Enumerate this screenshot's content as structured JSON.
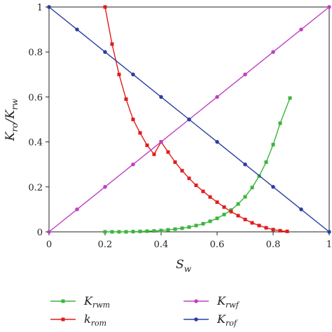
{
  "chart_data": {
    "type": "line",
    "xlabel": {
      "main": "S",
      "sub": "w"
    },
    "ylabel": {
      "main": "K",
      "sub1": "ro",
      "sep": "/K",
      "sub2": "rw"
    },
    "xlim": [
      0,
      1
    ],
    "ylim": [
      0,
      1
    ],
    "xticks": [
      "0",
      "0.2",
      "0.4",
      "0.6",
      "0.8",
      "1"
    ],
    "yticks": [
      "0",
      "0.2",
      "0.4",
      "0.6",
      "0.8",
      "1"
    ],
    "grid": false,
    "legend_position": "bottom",
    "series": [
      {
        "name": {
          "main": "K",
          "sub": "rwm"
        },
        "color": "#3cb43c",
        "marker": "square",
        "x": [
          0.2,
          0.225,
          0.25,
          0.275,
          0.3,
          0.325,
          0.35,
          0.375,
          0.4,
          0.425,
          0.45,
          0.475,
          0.5,
          0.525,
          0.55,
          0.575,
          0.6,
          0.625,
          0.65,
          0.675,
          0.7,
          0.725,
          0.75,
          0.775,
          0.8,
          0.825,
          0.86
        ],
        "y": [
          0.0,
          0.0,
          0.0,
          0.0,
          0.001,
          0.002,
          0.003,
          0.004,
          0.006,
          0.009,
          0.012,
          0.016,
          0.021,
          0.028,
          0.036,
          0.047,
          0.06,
          0.077,
          0.097,
          0.124,
          0.156,
          0.197,
          0.248,
          0.31,
          0.388,
          0.483,
          0.595
        ]
      },
      {
        "name": {
          "main": "k",
          "sub": "rom"
        },
        "color": "#e21b1b",
        "marker": "square",
        "x": [
          0.2,
          0.225,
          0.25,
          0.275,
          0.3,
          0.325,
          0.35,
          0.375,
          0.4,
          0.425,
          0.45,
          0.475,
          0.5,
          0.525,
          0.55,
          0.575,
          0.6,
          0.625,
          0.65,
          0.675,
          0.7,
          0.725,
          0.75,
          0.775,
          0.8,
          0.825,
          0.85
        ],
        "y": [
          1.0,
          0.835,
          0.7,
          0.59,
          0.5,
          0.44,
          0.385,
          0.345,
          0.4,
          0.355,
          0.31,
          0.272,
          0.238,
          0.207,
          0.18,
          0.155,
          0.132,
          0.11,
          0.09,
          0.072,
          0.055,
          0.04,
          0.028,
          0.018,
          0.01,
          0.005,
          0.002
        ]
      },
      {
        "name": {
          "main": "K",
          "sub": "rwf"
        },
        "color": "#c040c0",
        "marker": "circle",
        "x": [
          0,
          0.1,
          0.2,
          0.3,
          0.4,
          0.5,
          0.6,
          0.7,
          0.8,
          0.9,
          1.0
        ],
        "y": [
          0,
          0.1,
          0.2,
          0.3,
          0.4,
          0.5,
          0.6,
          0.7,
          0.8,
          0.9,
          1.0
        ]
      },
      {
        "name": {
          "main": "K",
          "sub": "rof"
        },
        "color": "#2a3f9e",
        "marker": "circle",
        "x": [
          0,
          0.1,
          0.2,
          0.3,
          0.4,
          0.5,
          0.6,
          0.7,
          0.8,
          0.9,
          1.0
        ],
        "y": [
          1.0,
          0.9,
          0.8,
          0.7,
          0.6,
          0.5,
          0.4,
          0.3,
          0.2,
          0.1,
          0.0
        ]
      }
    ]
  }
}
